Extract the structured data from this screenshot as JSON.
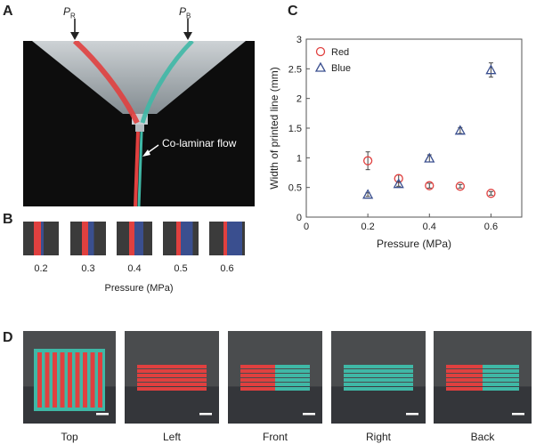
{
  "panels": {
    "A": {
      "letter": "A",
      "pressure_labels": [
        {
          "symbol": "P",
          "subscript": "R"
        },
        {
          "symbol": "P",
          "subscript": "B"
        }
      ],
      "annotation": "Co-laminar flow"
    },
    "B": {
      "letter": "B",
      "tick_labels": [
        "0.2",
        "0.3",
        "0.4",
        "0.5",
        "0.6"
      ],
      "xlabel": "Pressure (MPa)"
    },
    "C": {
      "letter": "C"
    },
    "D": {
      "letter": "D",
      "view_labels": [
        "Top",
        "Left",
        "Front",
        "Right",
        "Back"
      ]
    }
  },
  "colors": {
    "red": "#e0403f",
    "blue": "#3a4f8f",
    "teal": "#3fb8a6",
    "photo_bg": "#0d0d0d"
  },
  "chart_data": {
    "type": "scatter",
    "title": "",
    "xlabel": "Pressure (MPa)",
    "ylabel": "Width of printed line  (mm)",
    "xlim": [
      0,
      0.7
    ],
    "ylim": [
      0,
      3
    ],
    "xticks": [
      "0",
      "0.2",
      "0.4",
      "0.6"
    ],
    "yticks": [
      "0",
      "0.5",
      "1",
      "1.5",
      "2",
      "2.5",
      "3"
    ],
    "legend_position": "top-left",
    "series": [
      {
        "name": "Red",
        "marker": "circle",
        "x": [
          0.2,
          0.3,
          0.4,
          0.5,
          0.6
        ],
        "y": [
          0.95,
          0.65,
          0.53,
          0.52,
          0.4
        ],
        "err": [
          0.15,
          0.06,
          0.04,
          0.03,
          0.03
        ]
      },
      {
        "name": "Blue",
        "marker": "triangle",
        "x": [
          0.2,
          0.3,
          0.4,
          0.5,
          0.6
        ],
        "y": [
          0.38,
          0.56,
          0.99,
          1.46,
          2.48
        ],
        "err": [
          0.03,
          0.04,
          0.06,
          0.05,
          0.12
        ]
      }
    ]
  }
}
